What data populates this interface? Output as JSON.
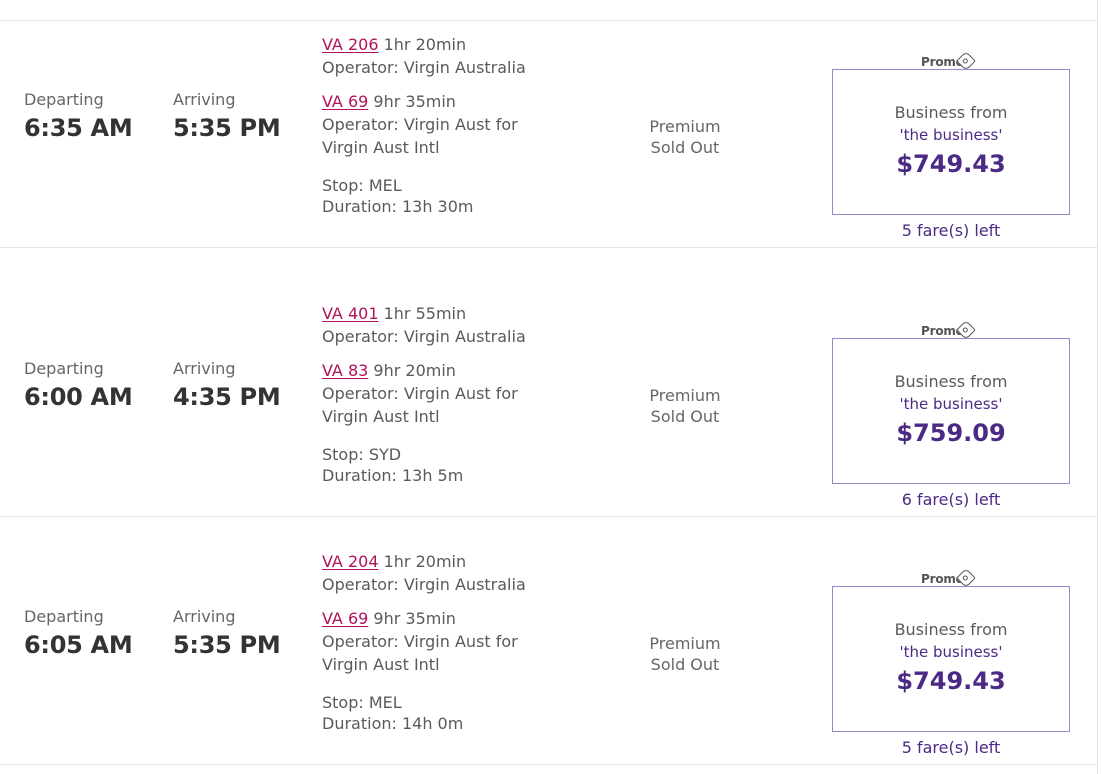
{
  "labels": {
    "departing": "Departing",
    "arriving": "Arriving",
    "premium_line1": "Premium",
    "premium_line2": "Sold Out",
    "promo": "Promo",
    "fare_class": "Business from",
    "fare_brand": "'the business'"
  },
  "flights": [
    {
      "depart_time": "6:00 AM",
      "arrive_time": "4:35 PM",
      "segments": [
        {
          "flight": "VA 401",
          "duration": "1hr 55min",
          "operator_line1": "Operator: Virgin Australia",
          "operator_line2": ""
        },
        {
          "flight": "VA 83",
          "duration": "9hr 20min",
          "operator_line1": "Operator: Virgin Aust for",
          "operator_line2": "Virgin Aust Intl"
        }
      ],
      "stop": "Stop: SYD",
      "total_duration": "Duration: 13h 5m",
      "price": "$759.09",
      "fares_left": "6 fare(s) left"
    },
    {
      "depart_time": "6:05 AM",
      "arrive_time": "5:35 PM",
      "segments": [
        {
          "flight": "VA 204",
          "duration": "1hr 20min",
          "operator_line1": "Operator: Virgin Australia",
          "operator_line2": ""
        },
        {
          "flight": "VA 69",
          "duration": "9hr 35min",
          "operator_line1": "Operator: Virgin Aust for",
          "operator_line2": "Virgin Aust Intl"
        }
      ],
      "stop": "Stop: MEL",
      "total_duration": "Duration: 14h 0m",
      "price": "$749.43",
      "fares_left": "5 fare(s) left"
    },
    {
      "depart_time": "6:35 AM",
      "arrive_time": "5:35 PM",
      "segments": [
        {
          "flight": "VA 206",
          "duration": "1hr 20min",
          "operator_line1": "Operator: Virgin Australia",
          "operator_line2": ""
        },
        {
          "flight": "VA 69",
          "duration": "9hr 35min",
          "operator_line1": "Operator: Virgin Aust for",
          "operator_line2": "Virgin Aust Intl"
        }
      ],
      "stop": "Stop: MEL",
      "total_duration": "Duration: 13h 30m",
      "price": "$749.43",
      "fares_left": "5 fare(s) left"
    }
  ],
  "colors": {
    "flight_link": "#b0125b",
    "brand_purple": "#4b2a86",
    "fare_border": "#9b86c9",
    "divider": "#e3e3e3"
  },
  "icons": {
    "promo": "tag-icon"
  }
}
